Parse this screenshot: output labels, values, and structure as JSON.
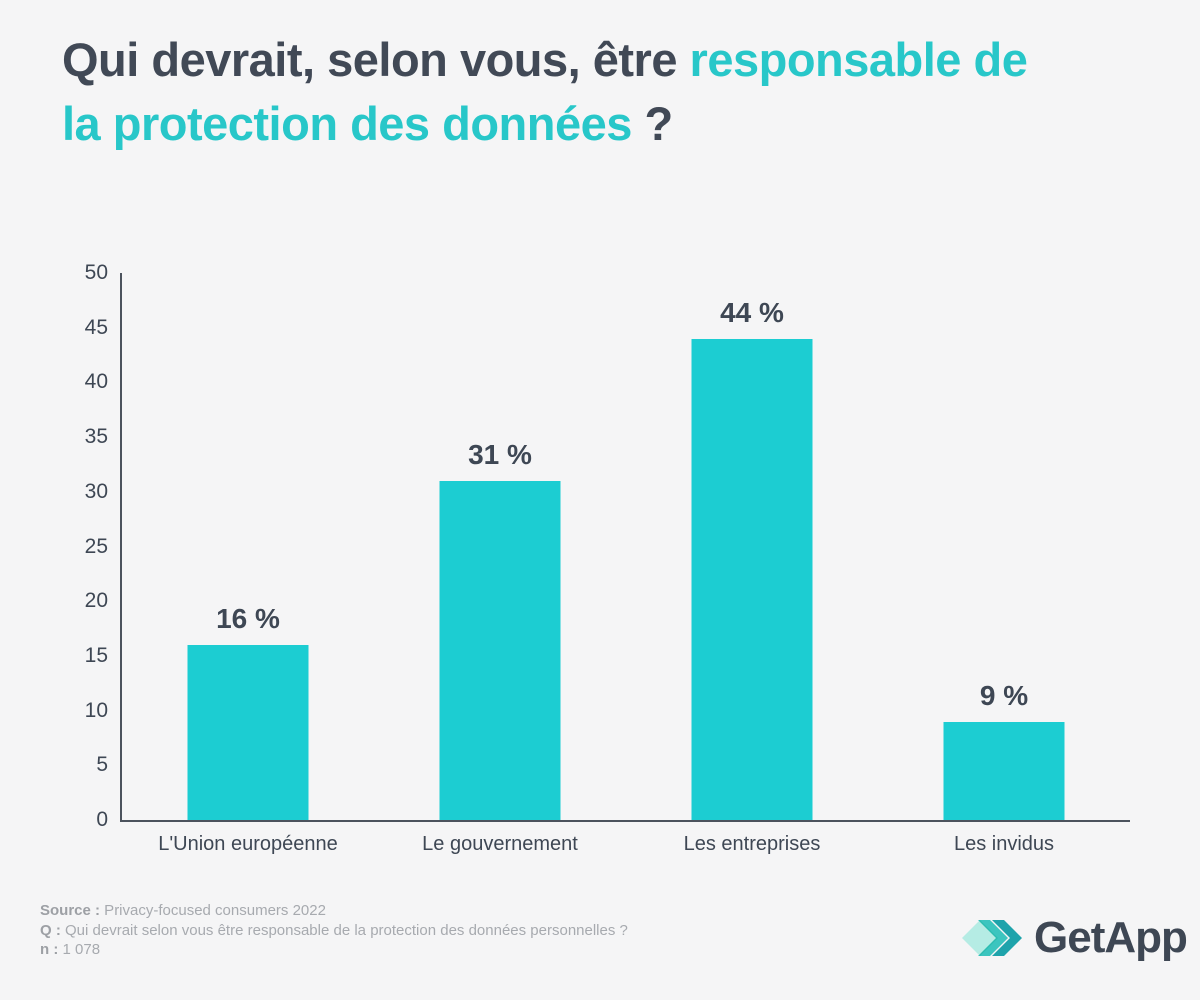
{
  "title": {
    "line1_dark": "Qui devrait, selon vous, être ",
    "line1_teal": "responsable de",
    "line2_teal": "la protection des données ",
    "line2_dark": "?"
  },
  "chart_data": {
    "type": "bar",
    "title": "Qui devrait, selon vous, être responsable de la protection des données ?",
    "categories": [
      "L'Union européenne",
      "Le gouvernement",
      "Les entreprises",
      "Les invidus"
    ],
    "values": [
      16,
      31,
      44,
      9
    ],
    "value_labels": [
      "16 %",
      "31 %",
      "44 %",
      "9 %"
    ],
    "xlabel": "",
    "ylabel": "",
    "ylim": [
      0,
      50
    ],
    "ytick_step": 5,
    "grid": false,
    "legend_position": "none",
    "bar_color": "#1ccdd2"
  },
  "footer": {
    "source_label": "Source :",
    "source_text": " Privacy-focused consumers 2022",
    "q_label": "Q :",
    "q_text": " Qui devrait selon vous être responsable de la protection des données personnelles ?",
    "n_label": "n :",
    "n_text": " 1 078"
  },
  "logo": {
    "text": "GetApp",
    "mark_icon": "getapp-diamond-chevrons-icon",
    "mark_colors": {
      "light": "#b5ece4",
      "mid": "#3ecdc6",
      "dark": "#1faab1"
    }
  },
  "colors": {
    "background": "#f5f5f6",
    "title_dark": "#414956",
    "title_accent": "#28c7c9",
    "bar": "#1ccdd2",
    "axis": "#4c535d",
    "tick_text": "#3e4754",
    "footer_text": "#a7aaaf"
  }
}
